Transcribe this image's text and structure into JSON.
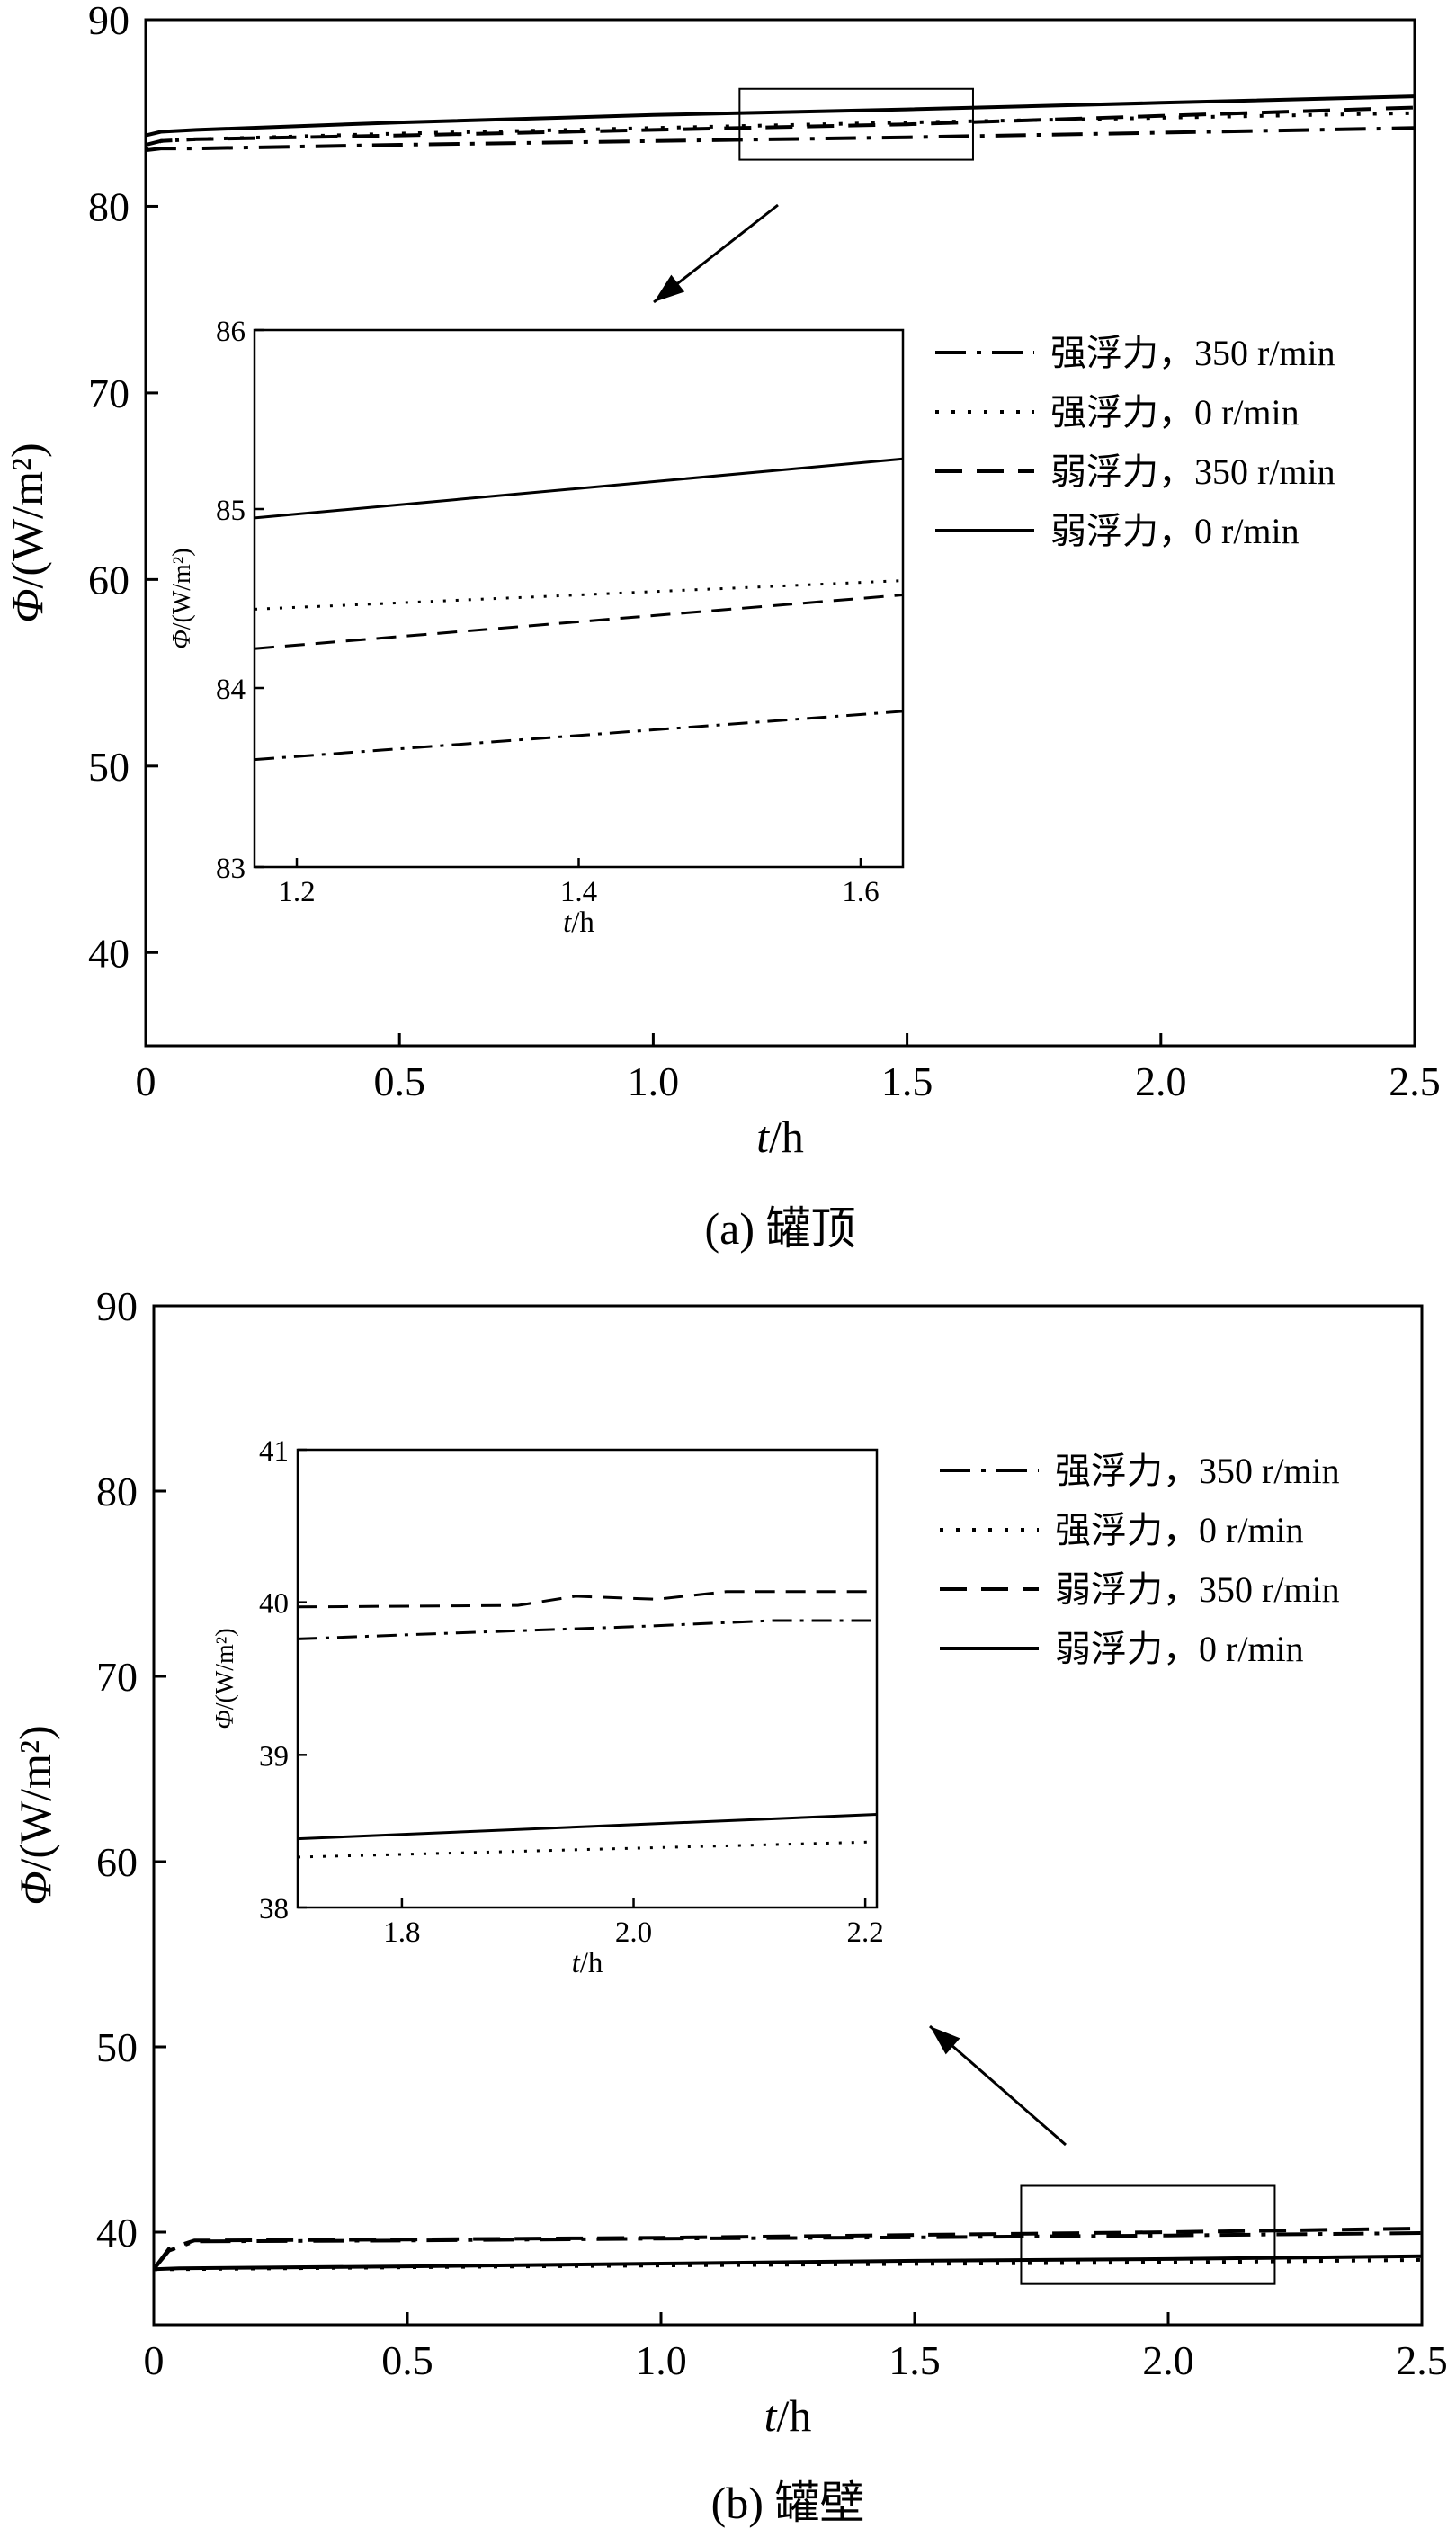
{
  "chart_data": [
    {
      "type": "line",
      "caption": "(a) 罐顶",
      "xlabel": "t/h",
      "ylabel": "Φ/(W/m²)",
      "xlim": [
        0,
        2.5
      ],
      "ylim": [
        35,
        90
      ],
      "xticks": [
        "0",
        "0.5",
        "1.0",
        "1.5",
        "2.0",
        "2.5"
      ],
      "yticks": [
        "40",
        "50",
        "60",
        "70",
        "80",
        "90"
      ],
      "legend": [
        "强浮力，350 r/min",
        "强浮力，0 r/min",
        "弱浮力，350 r/min",
        "弱浮力，0 r/min"
      ],
      "series": [
        {
          "name": "强浮力，350 r/min",
          "style": "dash-dot",
          "x": [
            0,
            0.03,
            0.1,
            0.5,
            1.0,
            1.5,
            2.0,
            2.5
          ],
          "y": [
            83.0,
            83.1,
            83.1,
            83.3,
            83.5,
            83.7,
            83.95,
            84.2
          ]
        },
        {
          "name": "强浮力，0 r/min",
          "style": "dotted",
          "x": [
            0,
            0.03,
            0.1,
            0.5,
            1.0,
            1.5,
            2.0,
            2.5
          ],
          "y": [
            83.0,
            83.5,
            83.6,
            83.9,
            84.2,
            84.5,
            84.75,
            85.0
          ]
        },
        {
          "name": "弱浮力，350 r/min",
          "style": "dashed",
          "x": [
            0,
            0.03,
            0.1,
            0.5,
            1.0,
            1.5,
            2.0,
            2.5
          ],
          "y": [
            83.3,
            83.5,
            83.6,
            83.8,
            84.1,
            84.4,
            84.85,
            85.3
          ]
        },
        {
          "name": "弱浮力，0 r/min",
          "style": "solid",
          "x": [
            0,
            0.03,
            0.1,
            0.5,
            1.0,
            1.5,
            2.0,
            2.5
          ],
          "y": [
            83.8,
            84.0,
            84.1,
            84.5,
            84.9,
            85.2,
            85.55,
            85.9
          ]
        }
      ],
      "zoom_region": {
        "xlim": [
          1.17,
          1.63
        ],
        "ylim": [
          82.5,
          86.3
        ]
      },
      "inset": {
        "xlabel": "t/h",
        "ylabel": "Φ/(W/m²)",
        "xlim": [
          1.17,
          1.63
        ],
        "ylim": [
          83,
          86
        ],
        "xticks": [
          "1.2",
          "1.4",
          "1.6"
        ],
        "yticks": [
          "83",
          "84",
          "85",
          "86"
        ],
        "series": [
          {
            "name": "强浮力，350 r/min",
            "style": "dash-dot",
            "x": [
              1.17,
              1.63
            ],
            "y": [
              83.6,
              83.87
            ]
          },
          {
            "name": "强浮力，0 r/min",
            "style": "dotted",
            "x": [
              1.17,
              1.63
            ],
            "y": [
              84.44,
              84.6
            ]
          },
          {
            "name": "弱浮力，350 r/min",
            "style": "dashed",
            "x": [
              1.17,
              1.63
            ],
            "y": [
              84.22,
              84.52
            ]
          },
          {
            "name": "弱浮力，0 r/min",
            "style": "solid",
            "x": [
              1.17,
              1.63
            ],
            "y": [
              84.95,
              85.28
            ]
          }
        ]
      }
    },
    {
      "type": "line",
      "caption": "(b) 罐壁",
      "xlabel": "t/h",
      "ylabel": "Φ/(W/m²)",
      "xlim": [
        0,
        2.5
      ],
      "ylim": [
        35,
        90
      ],
      "xticks": [
        "0",
        "0.5",
        "1.0",
        "1.5",
        "2.0",
        "2.5"
      ],
      "yticks": [
        "40",
        "50",
        "60",
        "70",
        "80",
        "90"
      ],
      "legend": [
        "强浮力，350 r/min",
        "强浮力，0 r/min",
        "弱浮力，350 r/min",
        "弱浮力，0 r/min"
      ],
      "series": [
        {
          "name": "强浮力，350 r/min",
          "style": "dash-dot",
          "x": [
            0,
            0.03,
            0.08,
            0.5,
            1.0,
            1.5,
            2.0,
            2.5
          ],
          "y": [
            38.0,
            39.0,
            39.5,
            39.55,
            39.65,
            39.72,
            39.82,
            39.95
          ]
        },
        {
          "name": "强浮力，0 r/min",
          "style": "dotted",
          "x": [
            0,
            0.05,
            0.5,
            1.0,
            1.5,
            2.0,
            2.5
          ],
          "y": [
            38.0,
            38.0,
            38.1,
            38.2,
            38.28,
            38.36,
            38.5
          ]
        },
        {
          "name": "弱浮力，350 r/min",
          "style": "dashed",
          "x": [
            0,
            0.03,
            0.08,
            0.5,
            1.0,
            1.5,
            2.0,
            2.5
          ],
          "y": [
            38.0,
            39.1,
            39.55,
            39.6,
            39.7,
            39.85,
            40.0,
            40.2
          ]
        },
        {
          "name": "弱浮力，0 r/min",
          "style": "solid",
          "x": [
            0,
            0.05,
            0.5,
            1.0,
            1.5,
            2.0,
            2.5
          ],
          "y": [
            38.0,
            38.05,
            38.15,
            38.3,
            38.45,
            38.55,
            38.7
          ]
        }
      ],
      "zoom_region": {
        "xlim": [
          1.71,
          2.21
        ],
        "ylim": [
          37.2,
          42.5
        ]
      },
      "inset": {
        "xlabel": "t/h",
        "ylabel": "Φ/(W/m²)",
        "xlim": [
          1.71,
          2.21
        ],
        "ylim": [
          38,
          41
        ],
        "xticks": [
          "1.8",
          "2.0",
          "2.2"
        ],
        "yticks": [
          "38",
          "39",
          "40",
          "41"
        ],
        "series": [
          {
            "name": "强浮力，350 r/min",
            "style": "dash-dot",
            "x": [
              1.71,
              1.85,
              2.0,
              2.12,
              2.21
            ],
            "y": [
              39.76,
              39.8,
              39.84,
              39.88,
              39.88
            ]
          },
          {
            "name": "强浮力，0 r/min",
            "style": "dotted",
            "x": [
              1.71,
              2.21
            ],
            "y": [
              38.33,
              38.43
            ]
          },
          {
            "name": "弱浮力，350 r/min",
            "style": "dashed",
            "x": [
              1.71,
              1.9,
              1.95,
              2.02,
              2.08,
              2.21
            ],
            "y": [
              39.97,
              39.98,
              40.04,
              40.02,
              40.07,
              40.07
            ]
          },
          {
            "name": "弱浮力，0 r/min",
            "style": "solid",
            "x": [
              1.71,
              2.21
            ],
            "y": [
              38.45,
              38.61
            ]
          }
        ]
      }
    }
  ]
}
